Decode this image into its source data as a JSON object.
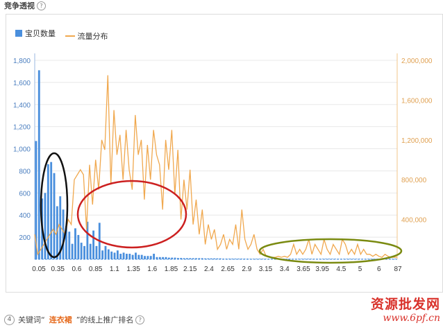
{
  "header": {
    "title": "竞争透视",
    "help": "?"
  },
  "footer": {
    "step": "4",
    "prefix": "关键词“",
    "keyword": "连衣裙",
    "suffix": "”的线上推广排名",
    "help": "?"
  },
  "watermark": {
    "line1": "资源批发网",
    "line2": "www.6pf.cn"
  },
  "colors": {
    "bar": "#4a8fdd",
    "line": "#f0a84e",
    "highlight_black": "#111111",
    "highlight_red": "#cc2020",
    "highlight_olive": "#7a8a10"
  },
  "chart_data": {
    "type": "bar+line",
    "legend": [
      "宝贝数量",
      "流量分布"
    ],
    "legend_position": "top-left",
    "grid": "horizontal",
    "x_tick_labels": [
      "0.05",
      "0.35",
      "0.6",
      "0.85",
      "1.1",
      "1.35",
      "1.6",
      "1.85",
      "2.15",
      "2.4",
      "2.65",
      "2.9",
      "3.15",
      "3.4",
      "3.65",
      "3.95",
      "4.5",
      "5",
      "6",
      "87"
    ],
    "y_left": {
      "range": [
        0,
        1800
      ],
      "ticks": [
        "200",
        "400",
        "600",
        "800",
        "1,000",
        "1,200",
        "1,400",
        "1,600",
        "1,800"
      ]
    },
    "y_right": {
      "range": [
        0,
        2000000
      ],
      "ticks": [
        "400,000",
        "800,000",
        "1,200,000",
        "1,600,000",
        "2,000,000"
      ]
    },
    "series": [
      {
        "name": "宝贝数量",
        "type": "bar",
        "axis": "left",
        "values": [
          1070,
          1710,
          550,
          600,
          860,
          880,
          780,
          480,
          570,
          450,
          300,
          250,
          140,
          280,
          220,
          150,
          120,
          340,
          140,
          260,
          120,
          330,
          80,
          120,
          90,
          70,
          60,
          80,
          50,
          60,
          50,
          50,
          40,
          60,
          40,
          40,
          30,
          30,
          30,
          50,
          20,
          20,
          20,
          20,
          15,
          15,
          15,
          12,
          12,
          10,
          10,
          10,
          10,
          10,
          10,
          10,
          8,
          8,
          8,
          8,
          8,
          8,
          6,
          6,
          6,
          6,
          6,
          6,
          6,
          6,
          6,
          5,
          5,
          5,
          5,
          5,
          5,
          5,
          5,
          5,
          5,
          5,
          5,
          5,
          5,
          5,
          5,
          5,
          5,
          5,
          5,
          5,
          5,
          5,
          5,
          5,
          5,
          5,
          5,
          5,
          5,
          5,
          5,
          5,
          5,
          5,
          5,
          5,
          5,
          5,
          5,
          5,
          5,
          5,
          5,
          5,
          5,
          5,
          5,
          5
        ]
      },
      {
        "name": "流量分布",
        "type": "line",
        "axis": "right",
        "values": [
          250000,
          50000,
          100000,
          150000,
          200000,
          250000,
          300000,
          250000,
          350000,
          300000,
          250000,
          400000,
          350000,
          800000,
          850000,
          900000,
          850000,
          300000,
          950000,
          550000,
          1000000,
          700000,
          1200000,
          1100000,
          1850000,
          750000,
          1500000,
          1050000,
          1250000,
          800000,
          1300000,
          900000,
          700000,
          1450000,
          1050000,
          1200000,
          600000,
          1150000,
          800000,
          1300000,
          1050000,
          950000,
          500000,
          1200000,
          900000,
          1300000,
          650000,
          1100000,
          400000,
          800000,
          500000,
          900000,
          350000,
          600000,
          250000,
          500000,
          150000,
          350000,
          200000,
          300000,
          100000,
          150000,
          250000,
          100000,
          200000,
          150000,
          350000,
          100000,
          500000,
          200000,
          100000,
          150000,
          250000,
          100000,
          50000,
          100000,
          30000,
          20000,
          20000,
          20000,
          30000,
          20000,
          30000,
          20000,
          50000,
          150000,
          50000,
          100000,
          50000,
          100000,
          200000,
          50000,
          150000,
          100000,
          50000,
          200000,
          100000,
          50000,
          150000,
          100000,
          50000,
          200000,
          150000,
          50000,
          100000,
          50000,
          150000,
          50000,
          100000,
          50000,
          50000,
          30000,
          50000,
          30000,
          20000,
          50000,
          30000,
          20000,
          20000,
          20000
        ]
      }
    ],
    "annotations": [
      "black ellipse around 0.15-0.35",
      "red ellipse around 0.85-1.85",
      "olive ellipse around 3.4-87"
    ]
  }
}
